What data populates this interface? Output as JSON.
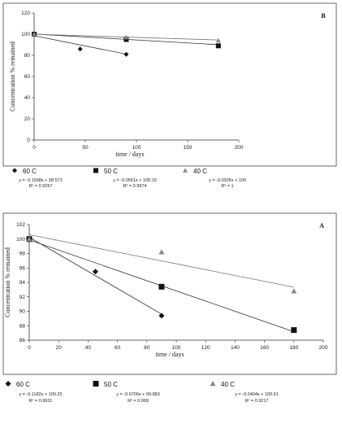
{
  "chart_data": [
    {
      "panel_label": "B",
      "type": "scatter",
      "xlabel": "time / days",
      "ylabel": "Concentration % remained",
      "xlim": [
        0,
        200
      ],
      "ylim": [
        0,
        120
      ],
      "xticks": [
        "0",
        "50",
        "100",
        "150",
        "200"
      ],
      "yticks": [
        "0",
        "20",
        "40",
        "60",
        "80",
        "100",
        "120"
      ],
      "series": [
        {
          "name": "60 C",
          "marker": "diamond",
          "color": "#111111",
          "x": [
            0,
            45,
            90
          ],
          "y": [
            100,
            86,
            81
          ],
          "trend": {
            "slope": -0.1938,
            "intercept": 98.573
          },
          "equation": "y = -0.1938x + 98.573",
          "r2": "R² = 0.9257"
        },
        {
          "name": "50 C",
          "marker": "square",
          "color": "#111111",
          "x": [
            0,
            90,
            180
          ],
          "y": [
            100,
            95,
            89
          ],
          "trend": {
            "slope": -0.0561,
            "intercept": 100.15
          },
          "equation": "y = -0.0561x + 100.15",
          "r2": "R² = 0.9974"
        },
        {
          "name": "40 C",
          "marker": "triangle",
          "color": "#888888",
          "x": [
            0,
            90,
            180
          ],
          "y": [
            100,
            97,
            94
          ],
          "trend": {
            "slope": -0.0305,
            "intercept": 100
          },
          "equation": "y = -0.0305x + 100",
          "r2": "R² = 1"
        }
      ]
    },
    {
      "panel_label": "A",
      "type": "scatter",
      "xlabel": "time / days",
      "ylabel": "Concentration % remained",
      "xlim": [
        0,
        200
      ],
      "ylim": [
        86,
        102
      ],
      "xticks": [
        "0",
        "20",
        "40",
        "60",
        "80",
        "100",
        "120",
        "140",
        "160",
        "180",
        "200"
      ],
      "yticks": [
        "86",
        "88",
        "90",
        "92",
        "94",
        "96",
        "98",
        "100",
        "102"
      ],
      "series": [
        {
          "name": "60 C",
          "marker": "diamond",
          "color": "#111111",
          "x": [
            0,
            45,
            90
          ],
          "y": [
            100,
            95.5,
            89.4
          ],
          "trend": {
            "slope": -0.1182,
            "intercept": 100.25
          },
          "equation": "y = -0.1182x + 100.25",
          "r2": "R² = 0.9931"
        },
        {
          "name": "50 C",
          "marker": "square",
          "color": "#111111",
          "x": [
            0,
            90,
            180
          ],
          "y": [
            100,
            93.4,
            87.4
          ],
          "trend": {
            "slope": -0.0706,
            "intercept": 99.883
          },
          "equation": "y = -0.0706x + 99.883",
          "r2": "R² = 0.999"
        },
        {
          "name": "40 C",
          "marker": "triangle",
          "color": "#888888",
          "x": [
            0,
            90,
            180
          ],
          "y": [
            100,
            98.2,
            92.8
          ],
          "trend": {
            "slope": -0.0404,
            "intercept": 100.61
          },
          "equation": "y = -0.0404x + 100.61",
          "r2": "R² = 0.9217"
        }
      ]
    }
  ]
}
